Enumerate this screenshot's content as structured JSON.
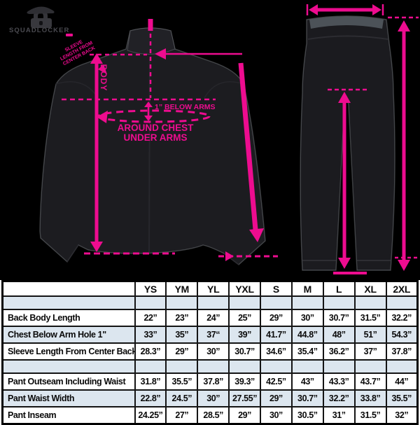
{
  "brand": {
    "name": "SQUADLOCKER"
  },
  "colors": {
    "accent_pink": "#ED0C8F",
    "background_top": "#000000",
    "table_alt_row": "#DCE6EF",
    "garment": "#1c1c20"
  },
  "jacket_annotations": {
    "body_label": "BODY",
    "below_arms_label": "1” BELOW ARMS",
    "around_chest_line1": "AROUND CHEST",
    "around_chest_line2": "UNDER ARMS",
    "sleeve_note_lines": [
      "SLEEVE",
      "LENGTH FROM",
      "CENTER BACK"
    ]
  },
  "size_table": {
    "columns": [
      "YS",
      "YM",
      "YL",
      "YXL",
      "S",
      "M",
      "L",
      "XL",
      "2XL"
    ],
    "rows": [
      {
        "spacer": true,
        "label": "",
        "values": [
          "",
          "",
          "",
          "",
          "",
          "",
          "",
          "",
          ""
        ]
      },
      {
        "label": "Back Body Length",
        "values": [
          "22”",
          "23”",
          "24”",
          "25”",
          "29”",
          "30”",
          "30.7”",
          "31.5”",
          "32.2”"
        ]
      },
      {
        "label": "Chest Below Arm Hole 1\"",
        "values": [
          "33”",
          "35”",
          "37“",
          "39”",
          "41.7”",
          "44.8”",
          "48”",
          "51”",
          "54.3”"
        ]
      },
      {
        "label": "Sleeve Length From Center Back",
        "values": [
          "28.3”",
          "29”",
          "30”",
          "30.7”",
          "34.6”",
          "35.4”",
          "36.2”",
          "37”",
          "37.8”"
        ]
      },
      {
        "spacer": true,
        "label": "",
        "values": [
          "",
          "",
          "",
          "",
          "",
          "",
          "",
          "",
          ""
        ]
      },
      {
        "label": "Pant Outseam Including Waist",
        "values": [
          "31.8”",
          "35.5”",
          "37.8”",
          "39.3”",
          "42.5”",
          "43”",
          "43.3”",
          "43.7”",
          "44”"
        ]
      },
      {
        "label": "Pant Waist Width",
        "values": [
          "22.8”",
          "24.5”",
          "30”",
          "27.55”",
          "29”",
          "30.7”",
          "32.2”",
          "33.8”",
          "35.5”"
        ]
      },
      {
        "label": "Pant Inseam",
        "values": [
          "24.25”",
          "27”",
          "28.5”",
          "29”",
          "30”",
          "30.5”",
          "31”",
          "31.5”",
          "32”"
        ]
      }
    ]
  }
}
